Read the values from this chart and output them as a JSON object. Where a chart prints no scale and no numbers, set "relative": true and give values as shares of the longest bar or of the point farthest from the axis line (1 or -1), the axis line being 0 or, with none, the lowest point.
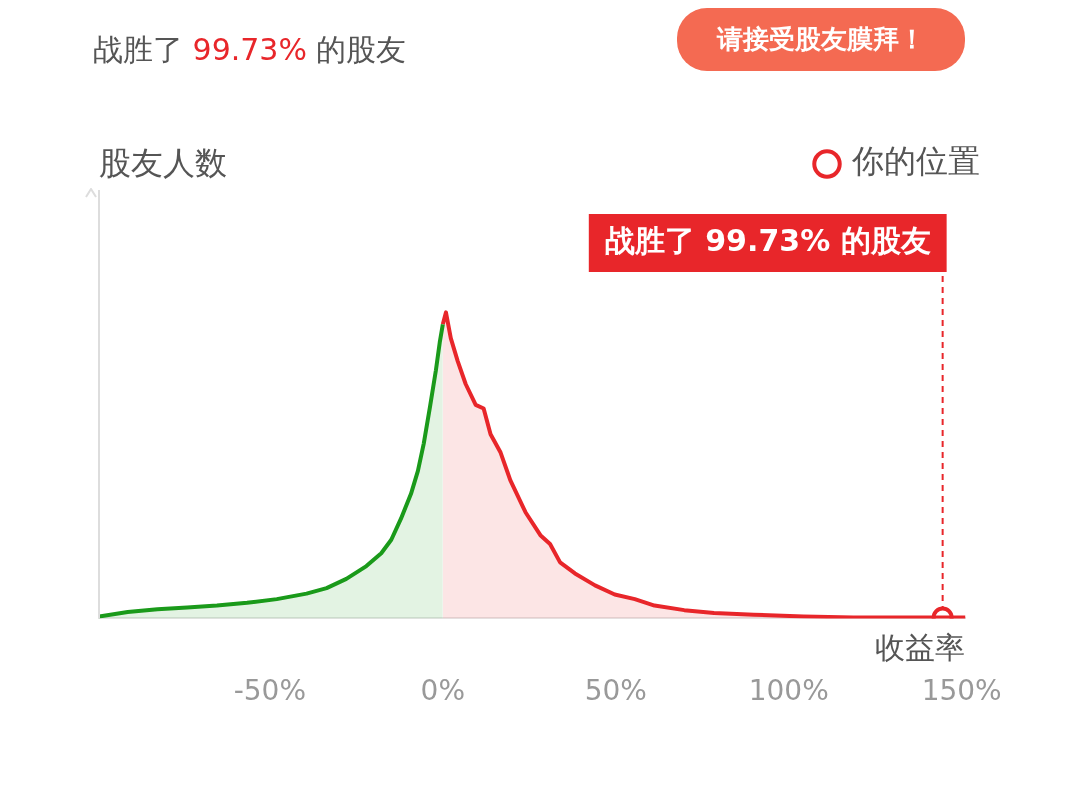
{
  "chart_data": {
    "type": "area",
    "title": "战胜了 99.73% 的股友",
    "ylabel": "股友人数",
    "xlabel": "收益率",
    "relative": true,
    "annotations": [
      "请接受股友膜拜！"
    ],
    "xlim": [
      -99.4,
      151.1
    ],
    "xticks": [
      {
        "value": -50,
        "label": "-50%"
      },
      {
        "value": 0,
        "label": "0%"
      },
      {
        "value": 50,
        "label": "50%"
      },
      {
        "value": 100,
        "label": "100%"
      },
      {
        "value": 150,
        "label": "150%"
      }
    ],
    "legend": "top right",
    "grid": false,
    "ref_lines": [
      {
        "axis": "x",
        "value": 144.5,
        "label": "战胜了 99.73% 的股友",
        "color": "#e8262a",
        "line_style": "dashed"
      }
    ],
    "series": [
      {
        "type": "area",
        "color": "#1a9a1a",
        "x": [
          -99.4,
          -91.1,
          -82.5,
          -73.9,
          -65.3,
          -56.6,
          -48.0,
          -39.4,
          -33.6,
          -27.9,
          -22.1,
          -17.8,
          -14.9,
          -12.1,
          -9.2,
          -7.2,
          -5.5,
          -3.7,
          -2.0,
          -0.9,
          0
        ],
        "values": [
          0.006,
          0.021,
          0.03,
          0.036,
          0.042,
          0.051,
          0.063,
          0.081,
          0.099,
          0.129,
          0.171,
          0.213,
          0.257,
          0.326,
          0.407,
          0.482,
          0.572,
          0.692,
          0.811,
          0.901,
          0.961
        ]
      },
      {
        "type": "area",
        "color": "#e8262a",
        "x": [
          0,
          0.9,
          2.3,
          4.3,
          6.6,
          9.5,
          11.8,
          13.8,
          16.7,
          19.5,
          23.9,
          28.2,
          31.0,
          33.9,
          38.2,
          44.0,
          49.7,
          55.5,
          61.2,
          69.8,
          78.4,
          89.9,
          104.3,
          118.7,
          133.0,
          151.1
        ],
        "values": [
          0.961,
          1,
          0.916,
          0.841,
          0.766,
          0.698,
          0.686,
          0.602,
          0.542,
          0.452,
          0.347,
          0.272,
          0.243,
          0.183,
          0.147,
          0.108,
          0.078,
          0.063,
          0.042,
          0.027,
          0.018,
          0.012,
          0.006,
          0.003,
          0.003,
          0.003
        ]
      },
      {
        "type": "scatter",
        "name": "你的位置",
        "color": "#e8262a",
        "marker": "circle",
        "x": [
          144.5
        ],
        "values": [
          0.003
        ]
      }
    ]
  }
}
